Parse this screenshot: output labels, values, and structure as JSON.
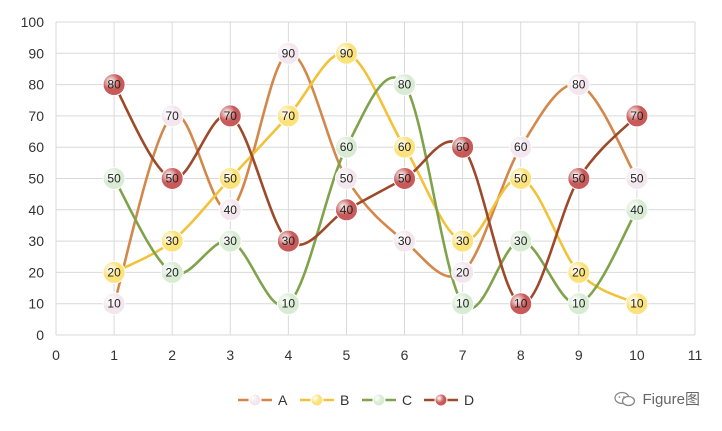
{
  "chart_data": {
    "type": "line",
    "smooth": true,
    "title": "",
    "xlabel": "",
    "ylabel": "",
    "xlim": [
      0,
      11
    ],
    "ylim": [
      0,
      100
    ],
    "x_ticks": [
      0,
      1,
      2,
      3,
      4,
      5,
      6,
      7,
      8,
      9,
      10,
      11
    ],
    "y_ticks": [
      0,
      10,
      20,
      30,
      40,
      50,
      60,
      70,
      80,
      90,
      100
    ],
    "grid": true,
    "legend_position": "bottom",
    "series": [
      {
        "name": "A",
        "color": "#D4874A",
        "marker": "#F3E6EE",
        "x": [
          1,
          2,
          3,
          4,
          5,
          6,
          7,
          8,
          9,
          10
        ],
        "values": [
          10,
          70,
          40,
          90,
          50,
          30,
          20,
          60,
          80,
          50
        ]
      },
      {
        "name": "B",
        "color": "#F2C23B",
        "marker": "#FBE27A",
        "x": [
          1,
          2,
          3,
          4,
          5,
          6,
          7,
          8,
          9,
          10
        ],
        "values": [
          20,
          30,
          50,
          70,
          90,
          60,
          30,
          50,
          20,
          10
        ]
      },
      {
        "name": "C",
        "color": "#7FA34B",
        "marker": "#D8EBD3",
        "x": [
          1,
          2,
          3,
          4,
          5,
          6,
          7,
          8,
          9
        ],
        "values": [
          50,
          20,
          30,
          10,
          60,
          80,
          10,
          30,
          10
        ]
      },
      {
        "name": "C",
        "color": "#7FA34B",
        "marker": "#D8EBD3",
        "x": [
          10
        ],
        "values": [
          40
        ]
      },
      {
        "name": "D",
        "color": "#9C4A2A",
        "marker": "#C85A5A",
        "x": [
          1,
          2,
          3,
          4,
          5,
          6,
          7,
          8,
          9,
          10
        ],
        "values": [
          80,
          50,
          70,
          30,
          40,
          50,
          60,
          10,
          50,
          70
        ]
      }
    ]
  },
  "watermark": {
    "text": "Figure图",
    "icon": "wechat-icon"
  }
}
